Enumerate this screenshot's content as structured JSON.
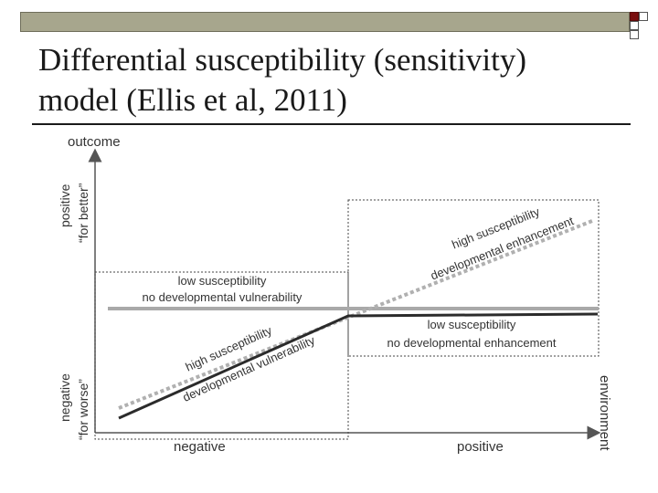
{
  "slide": {
    "title_line1": "Differential susceptibility (sensitivity)",
    "title_line2": "model (Ellis et al, 2011)"
  },
  "diagram": {
    "y_axis_label": "outcome",
    "x_axis_label": "environment",
    "y_positive": "positive",
    "y_positive_sub": "“for better”",
    "y_negative": "negative",
    "y_negative_sub": "“for worse”",
    "x_negative": "negative",
    "x_positive": "positive",
    "low_box": {
      "line1": "low susceptibility",
      "line2": "no developmental vulnerability"
    },
    "high_low_line": {
      "line1": "high susceptibility",
      "line2": "developmental vulnerability"
    },
    "high_high_line": {
      "line1": "high susceptibility",
      "line2": "developmental enhancement"
    },
    "low_right_box": {
      "line1": "low susceptibility",
      "line2": "no developmental enhancement"
    },
    "colors": {
      "dark_line": "#2b2b2b",
      "grey_line": "#a9a9a9",
      "dotted_line": "#b0b0b0",
      "axis": "#555555"
    }
  }
}
